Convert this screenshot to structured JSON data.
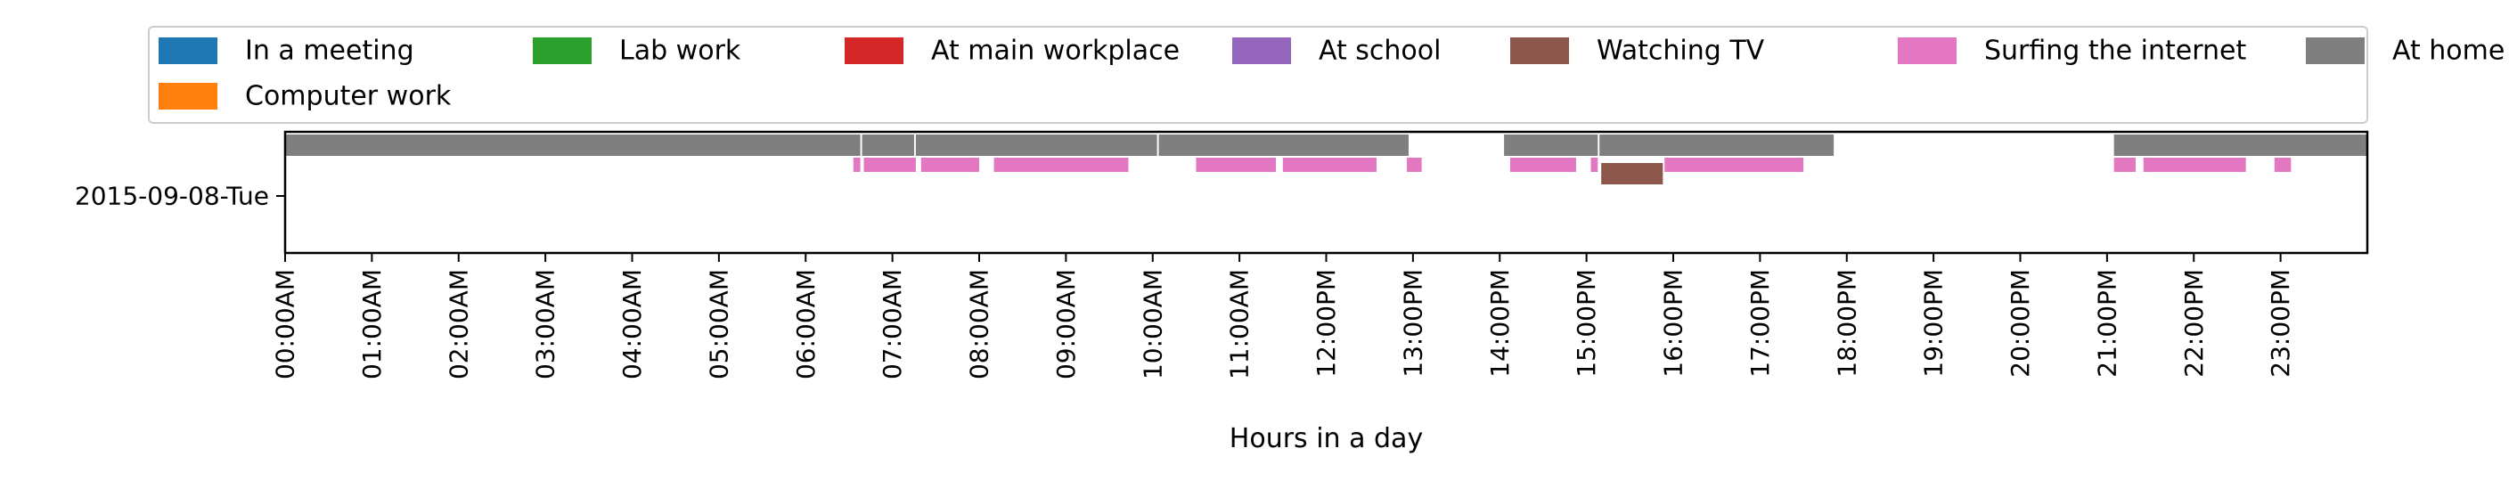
{
  "chart_data": {
    "type": "timeline",
    "xlabel": "Hours in a day",
    "ylabel": "",
    "xlim": [
      0,
      24
    ],
    "x_ticks": [
      "00:00AM",
      "01:00AM",
      "02:00AM",
      "03:00AM",
      "04:00AM",
      "05:00AM",
      "06:00AM",
      "07:00AM",
      "08:00AM",
      "09:00AM",
      "10:00AM",
      "11:00AM",
      "12:00PM",
      "13:00PM",
      "14:00PM",
      "15:00PM",
      "16:00PM",
      "17:00PM",
      "18:00PM",
      "19:00PM",
      "20:00PM",
      "21:00PM",
      "22:00PM",
      "23:00PM"
    ],
    "rows": [
      "2015-09-08-Tue"
    ],
    "legend": {
      "placement": "top",
      "columns": 7,
      "entries": [
        {
          "name": "In a meeting",
          "color": "#1f77b4"
        },
        {
          "name": "Lab work",
          "color": "#2ca02c"
        },
        {
          "name": "At main workplace",
          "color": "#d62728"
        },
        {
          "name": "At school",
          "color": "#9467bd"
        },
        {
          "name": "Watching TV",
          "color": "#8c564b"
        },
        {
          "name": "Surfing the internet",
          "color": "#e377c2"
        },
        {
          "name": "At home",
          "color": "#7f7f7f"
        },
        {
          "name": "Computer work",
          "color": "#ff7f0e"
        }
      ]
    },
    "series": [
      {
        "name": "At home",
        "color": "#7f7f7f",
        "lane": 0,
        "segments": [
          [
            0.0,
            6.63
          ],
          [
            6.65,
            7.25
          ],
          [
            7.27,
            10.05
          ],
          [
            10.07,
            12.95
          ],
          [
            14.05,
            15.13
          ],
          [
            15.15,
            17.85
          ],
          [
            21.08,
            24.0
          ]
        ]
      },
      {
        "name": "Surfing the internet",
        "color": "#e377c2",
        "lane": 1,
        "segments": [
          [
            6.55,
            6.63
          ],
          [
            6.67,
            7.27
          ],
          [
            7.33,
            8.0
          ],
          [
            8.17,
            9.72
          ],
          [
            10.5,
            11.42
          ],
          [
            11.5,
            12.58
          ],
          [
            12.93,
            13.1
          ],
          [
            14.12,
            14.88
          ],
          [
            15.05,
            15.13
          ],
          [
            15.9,
            17.5
          ],
          [
            21.08,
            21.33
          ],
          [
            21.42,
            22.6
          ],
          [
            22.93,
            23.12
          ]
        ]
      },
      {
        "name": "Watching TV",
        "color": "#8c564b",
        "lane": 2,
        "segments": [
          [
            15.17,
            15.88
          ]
        ]
      }
    ]
  }
}
